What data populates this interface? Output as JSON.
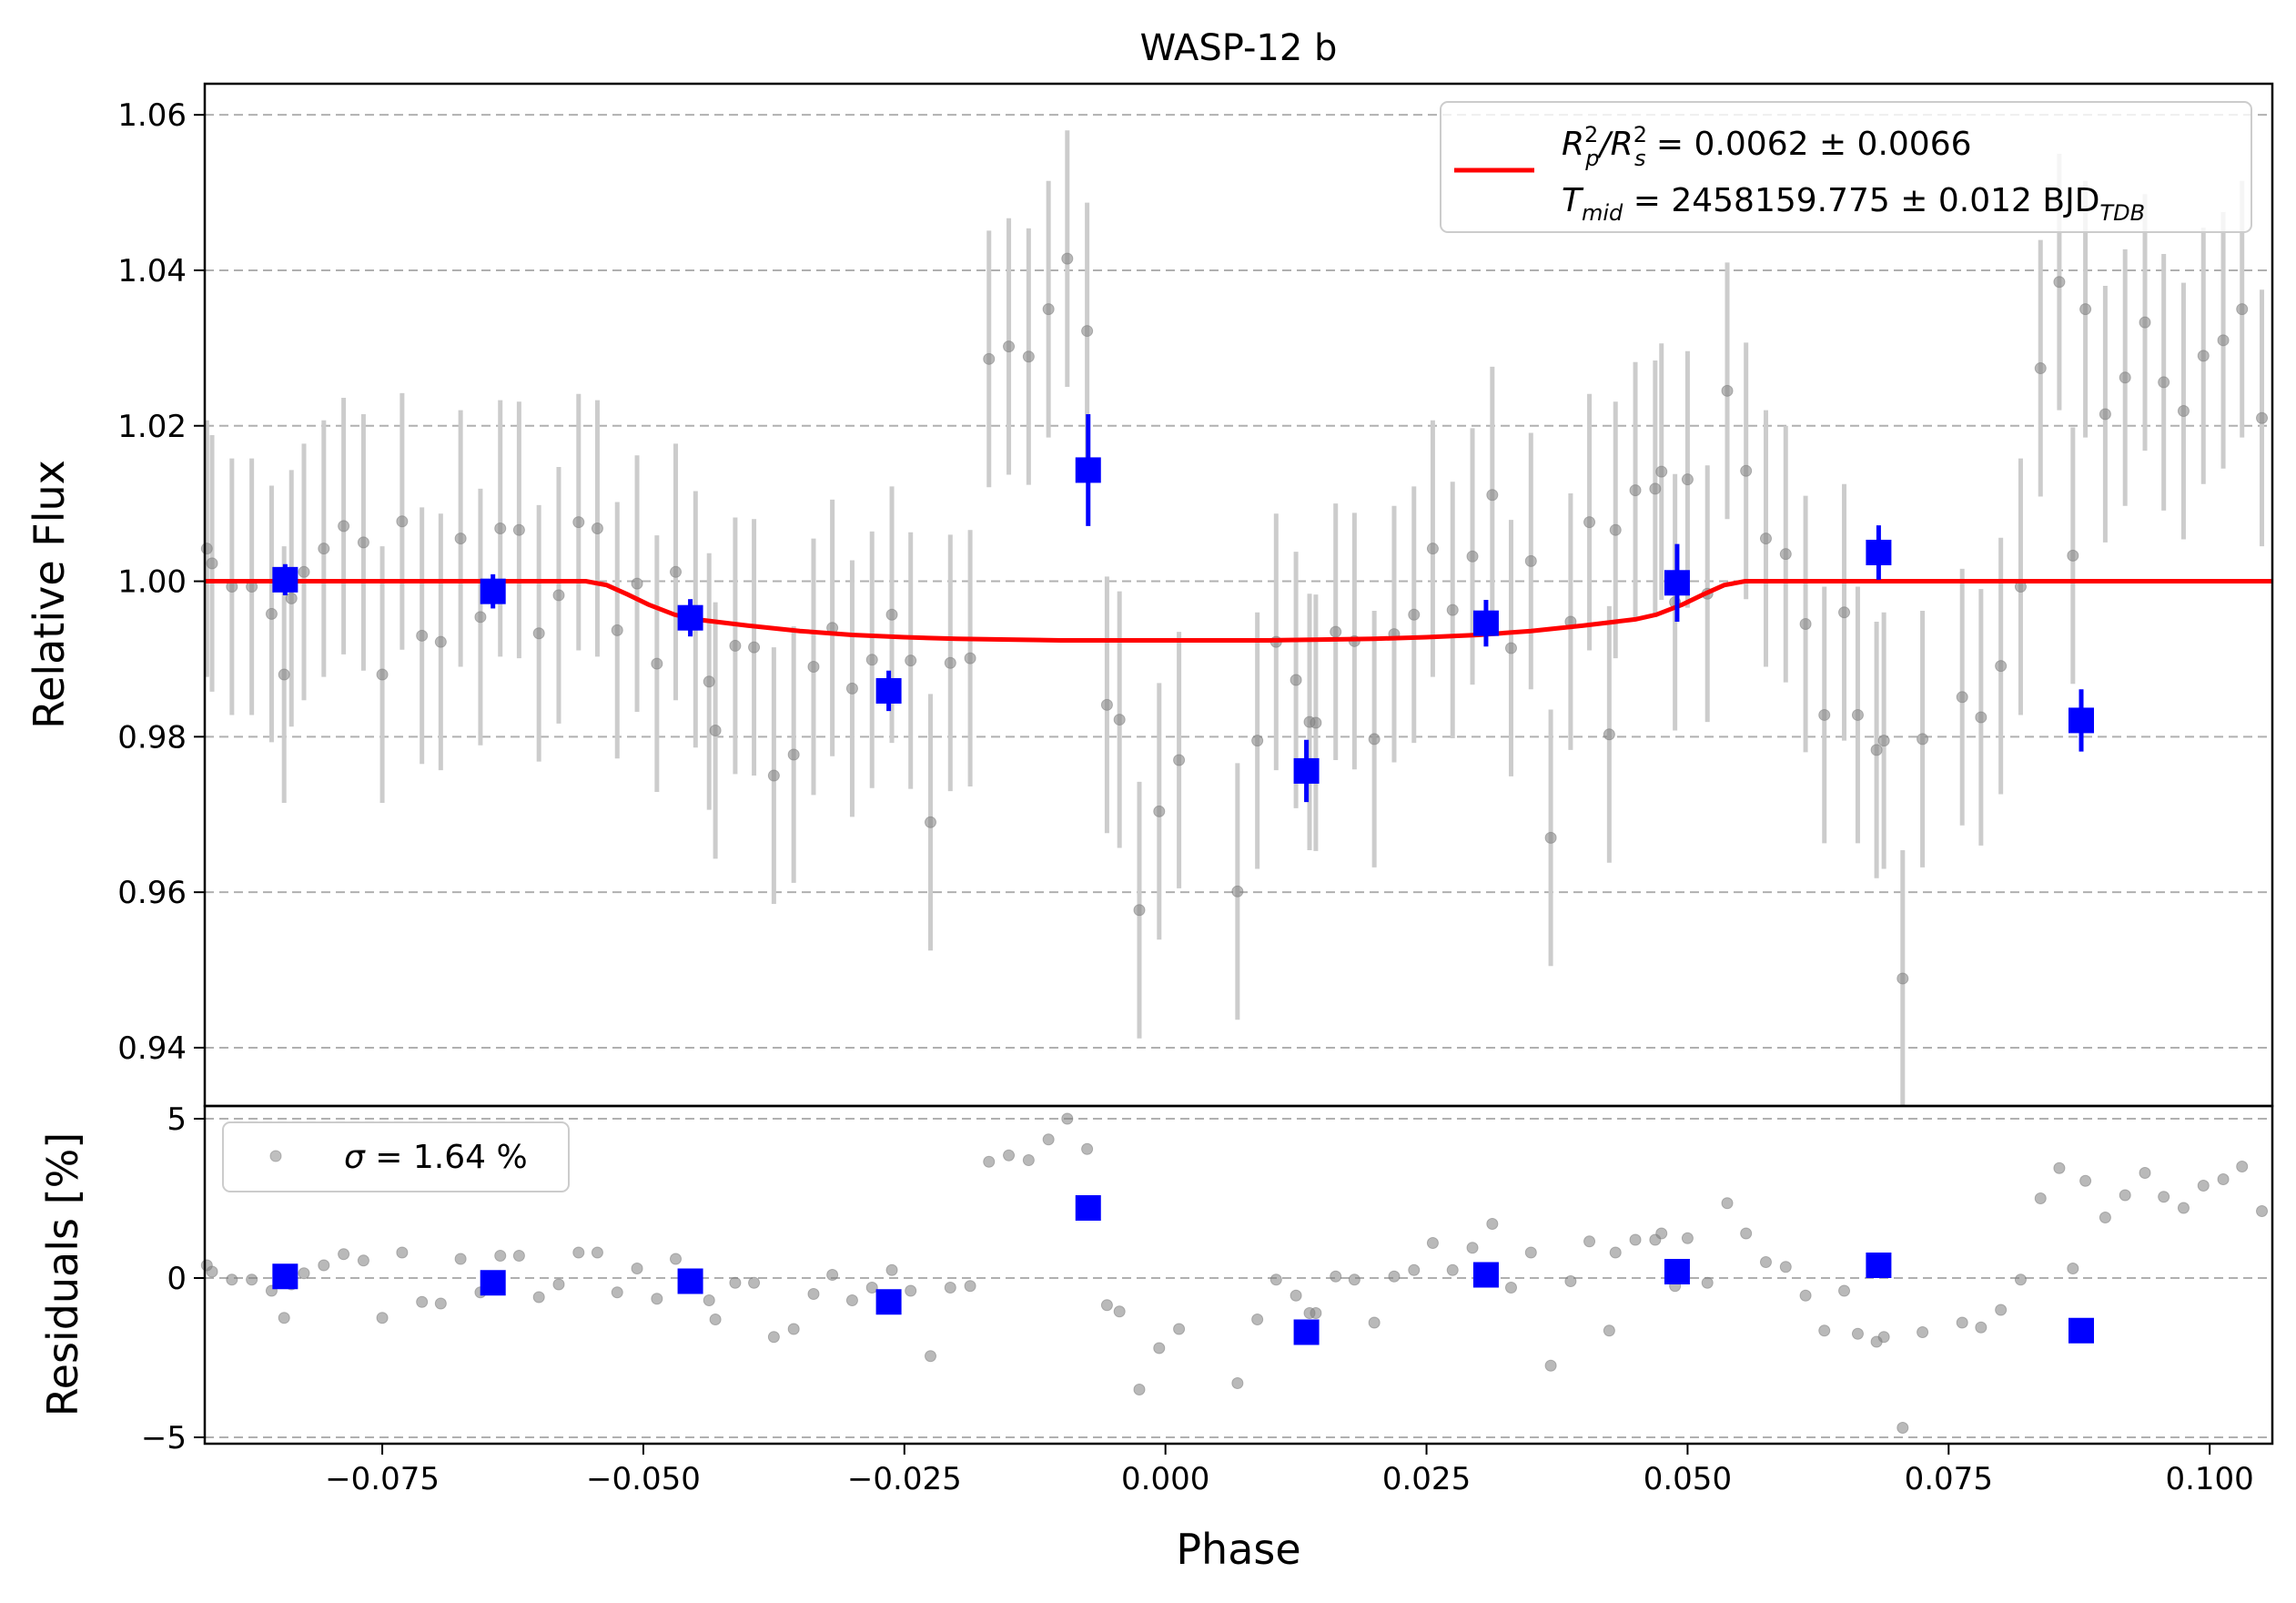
{
  "chart_data": [
    {
      "type": "scatter",
      "title": "WASP-12 b",
      "xlabel": "",
      "ylabel": "Relative Flux",
      "xlim": [
        -0.092,
        0.106
      ],
      "ylim": [
        0.9325,
        1.064
      ],
      "yticks": [
        0.94,
        0.96,
        0.98,
        1.0,
        1.02,
        1.04,
        1.06
      ],
      "ytick_labels": [
        "0.94",
        "0.96",
        "0.98",
        "1.00",
        "1.02",
        "1.04",
        "1.06"
      ],
      "grid": "horizontal dashed",
      "legend_position": "top-right",
      "legend": [
        {
          "label_main": "R",
          "label_sub1": "p",
          "label_mid": "/R",
          "label_sub2": "s",
          "label_rest": " = 0.0062 ± 0.0066",
          "color": "#ff0000"
        },
        {
          "label_main": "T",
          "label_sub1": "mid",
          "label_rest": " = 2458159.775 ± 0.012 BJD",
          "label_sub2": "TDB"
        }
      ],
      "series": [
        {
          "name": "raw",
          "color": "#808080",
          "errcolor": "#cccccc",
          "x": [
            -0.0918,
            -0.0913,
            -0.0894,
            -0.0875,
            -0.0856,
            -0.0844,
            -0.0837,
            -0.0825,
            -0.0806,
            -0.0787,
            -0.0768,
            -0.075,
            -0.0731,
            -0.0712,
            -0.0694,
            -0.0675,
            -0.0656,
            -0.0637,
            -0.0619,
            -0.06,
            -0.0581,
            -0.0562,
            -0.0544,
            -0.0525,
            -0.0506,
            -0.0487,
            -0.0469,
            -0.045,
            -0.0437,
            -0.0431,
            -0.0412,
            -0.0394,
            -0.0375,
            -0.0356,
            -0.0337,
            -0.0319,
            -0.03,
            -0.0281,
            -0.0262,
            -0.0244,
            -0.0225,
            -0.0206,
            -0.0187,
            -0.0169,
            -0.015,
            -0.0131,
            -0.0112,
            -0.0094,
            -0.0075,
            -0.0056,
            -0.0044,
            -0.0025,
            -0.0006,
            0.0013,
            0.0069,
            0.0088,
            0.0106,
            0.0125,
            0.0138,
            0.0144,
            0.0163,
            0.0181,
            0.02,
            0.0219,
            0.0238,
            0.0256,
            0.0275,
            0.0294,
            0.0313,
            0.0331,
            0.035,
            0.0369,
            0.0388,
            0.0406,
            0.0425,
            0.0431,
            0.045,
            0.0469,
            0.0475,
            0.0488,
            0.05,
            0.0519,
            0.0538,
            0.0556,
            0.0575,
            0.0594,
            0.0613,
            0.0631,
            0.065,
            0.0663,
            0.0681,
            0.0688,
            0.0706,
            0.0725,
            0.0763,
            0.0781,
            0.08,
            0.0819,
            0.0838,
            0.0856,
            0.0869,
            0.0881,
            0.09,
            0.0919,
            0.0938,
            0.0956,
            0.0975,
            0.0994,
            0.1013,
            0.1031,
            0.105
          ],
          "y": [
            1.0042,
            1.0023,
            0.9993,
            0.9993,
            0.9958,
            0.988,
            0.9978,
            1.0012,
            1.0042,
            1.0071,
            1.005,
            0.988,
            1.0077,
            0.993,
            0.9922,
            1.0055,
            0.9954,
            1.0068,
            1.0066,
            0.9933,
            0.9982,
            1.0076,
            1.0068,
            0.9937,
            0.9997,
            0.9894,
            1.0012,
            0.9951,
            0.9871,
            0.9808,
            0.9917,
            0.9915,
            0.975,
            0.9777,
            0.989,
            0.994,
            0.9862,
            0.9899,
            0.9957,
            0.9898,
            0.969,
            0.9895,
            0.9901,
            1.0286,
            1.0302,
            1.0289,
            1.035,
            1.0415,
            1.0322,
            0.9841,
            0.9822,
            0.9577,
            0.9704,
            0.977,
            0.9601,
            0.9795,
            0.9922,
            0.9873,
            0.9819,
            0.9818,
            0.9935,
            0.9923,
            0.9797,
            0.9932,
            0.9957,
            1.0042,
            0.9963,
            1.0032,
            1.0111,
            0.9914,
            1.0026,
            0.967,
            0.9948,
            1.0076,
            0.9803,
            1.0066,
            1.0117,
            1.0119,
            1.0141,
            0.9973,
            1.0131,
            0.9984,
            1.0245,
            1.0142,
            1.0055,
            1.0035,
            0.9945,
            0.9828,
            0.996,
            0.9828,
            0.9783,
            0.9795,
            0.9489,
            0.9797,
            0.9851,
            0.9825,
            0.9891,
            0.9993,
            1.0274,
            1.0385,
            1.0033,
            1.035,
            1.0215,
            1.0262,
            1.0333,
            1.0256,
            1.0219,
            1.029,
            1.031,
            1.035,
            1.021
          ],
          "yerr": [
            0.0165,
            0.0165,
            0.0165,
            0.0165,
            0.0165,
            0.0165,
            0.0165,
            0.0165,
            0.0165,
            0.0165,
            0.0165,
            0.0165,
            0.0165,
            0.0165,
            0.0165,
            0.0165,
            0.0165,
            0.0165,
            0.0165,
            0.0165,
            0.0165,
            0.0165,
            0.0165,
            0.0165,
            0.0165,
            0.0165,
            0.0165,
            0.0165,
            0.0165,
            0.0165,
            0.0165,
            0.0165,
            0.0165,
            0.0165,
            0.0165,
            0.0165,
            0.0165,
            0.0165,
            0.0165,
            0.0165,
            0.0165,
            0.0165,
            0.0165,
            0.0165,
            0.0165,
            0.0165,
            0.0165,
            0.0165,
            0.0165,
            0.0165,
            0.0165,
            0.0165,
            0.0165,
            0.0165,
            0.0165,
            0.0165,
            0.0165,
            0.0165,
            0.0165,
            0.0165,
            0.0165,
            0.0165,
            0.0165,
            0.0165,
            0.0165,
            0.0165,
            0.0165,
            0.0165,
            0.0165,
            0.0165,
            0.0165,
            0.0165,
            0.0165,
            0.0165,
            0.0165,
            0.0165,
            0.0165,
            0.0165,
            0.0165,
            0.0165,
            0.0165,
            0.0165,
            0.0165,
            0.0165,
            0.0165,
            0.0165,
            0.0165,
            0.0165,
            0.0165,
            0.0165,
            0.0165,
            0.0165,
            0.0165,
            0.0165,
            0.0165,
            0.0165,
            0.0165,
            0.0165,
            0.0165,
            0.0165,
            0.0165,
            0.0165,
            0.0165,
            0.0165,
            0.0165,
            0.0165,
            0.0165,
            0.0165,
            0.0165,
            0.0165,
            0.0165
          ]
        },
        {
          "name": "binned",
          "color": "#0000ff",
          "x": [
            -0.0843,
            -0.0644,
            -0.0455,
            -0.0265,
            -0.0074,
            0.0135,
            0.0307,
            0.049,
            0.0683,
            0.0877
          ],
          "y": [
            1.0002,
            0.9987,
            0.9953,
            0.9859,
            1.0143,
            0.9756,
            0.9946,
            0.9998,
            1.0037,
            0.9821
          ],
          "yerr": [
            0.002,
            0.0022,
            0.0024,
            0.0026,
            0.0072,
            0.004,
            0.003,
            0.005,
            0.0035,
            0.004
          ]
        },
        {
          "name": "model",
          "color": "#ff0000",
          "x": [
            -0.092,
            -0.0555,
            -0.0535,
            -0.0515,
            -0.0495,
            -0.047,
            -0.045,
            -0.04,
            -0.035,
            -0.03,
            -0.025,
            -0.02,
            -0.015,
            -0.01,
            -0.005,
            0.0,
            0.005,
            0.01,
            0.015,
            0.02,
            0.025,
            0.03,
            0.035,
            0.04,
            0.045,
            0.047,
            0.0495,
            0.0515,
            0.0535,
            0.0555,
            0.106
          ],
          "y": [
            1.0,
            1.0,
            0.9995,
            0.9983,
            0.997,
            0.9957,
            0.9951,
            0.9943,
            0.9936,
            0.9931,
            0.9928,
            0.9926,
            0.9925,
            0.9924,
            0.9924,
            0.9924,
            0.9924,
            0.9924,
            0.9925,
            0.9926,
            0.9928,
            0.9931,
            0.9936,
            0.9943,
            0.9951,
            0.9957,
            0.997,
            0.9983,
            0.9995,
            1.0,
            1.0
          ]
        }
      ]
    },
    {
      "type": "scatter",
      "title": "",
      "xlabel": "Phase",
      "ylabel": "Residuals [%]",
      "xlim": [
        -0.092,
        0.106
      ],
      "ylim": [
        -5.2,
        5.4
      ],
      "yticks": [
        -5,
        0,
        5
      ],
      "ytick_labels": [
        "−5",
        "0",
        "5"
      ],
      "xticks": [
        -0.075,
        -0.05,
        -0.025,
        0.0,
        0.025,
        0.05,
        0.075,
        0.1
      ],
      "xtick_labels": [
        "−0.075",
        "−0.050",
        "−0.025",
        "0.000",
        "0.025",
        "0.050",
        "0.075",
        "0.100"
      ],
      "grid": "horizontal dashed",
      "legend_position": "top-left",
      "legend": [
        {
          "label_main": "σ",
          "label_rest": " = 1.64 %",
          "color": "#808080"
        }
      ],
      "series": [
        {
          "name": "raw",
          "color": "#808080",
          "x": [
            -0.0918,
            -0.0913,
            -0.0894,
            -0.0875,
            -0.0856,
            -0.0844,
            -0.0837,
            -0.0825,
            -0.0806,
            -0.0787,
            -0.0768,
            -0.075,
            -0.0731,
            -0.0712,
            -0.0694,
            -0.0675,
            -0.0656,
            -0.0637,
            -0.0619,
            -0.06,
            -0.0581,
            -0.0562,
            -0.0544,
            -0.0525,
            -0.0506,
            -0.0487,
            -0.0469,
            -0.045,
            -0.0437,
            -0.0431,
            -0.0412,
            -0.0394,
            -0.0375,
            -0.0356,
            -0.0337,
            -0.0319,
            -0.03,
            -0.0281,
            -0.0262,
            -0.0244,
            -0.0225,
            -0.0206,
            -0.0187,
            -0.0169,
            -0.015,
            -0.0131,
            -0.0112,
            -0.0094,
            -0.0075,
            -0.0056,
            -0.0044,
            -0.0025,
            -0.0006,
            0.0013,
            0.0069,
            0.0088,
            0.0106,
            0.0125,
            0.0138,
            0.0144,
            0.0163,
            0.0181,
            0.02,
            0.0219,
            0.0238,
            0.0256,
            0.0275,
            0.0294,
            0.0313,
            0.0331,
            0.035,
            0.0369,
            0.0388,
            0.0406,
            0.0425,
            0.0431,
            0.045,
            0.0469,
            0.0475,
            0.0488,
            0.05,
            0.0519,
            0.0538,
            0.0556,
            0.0575,
            0.0594,
            0.0613,
            0.0631,
            0.065,
            0.0663,
            0.0681,
            0.0688,
            0.0706,
            0.0725,
            0.0763,
            0.0781,
            0.08,
            0.0819,
            0.0838,
            0.0856,
            0.0869,
            0.0881,
            0.09,
            0.0919,
            0.0938,
            0.0956,
            0.0975,
            0.0994,
            0.1013,
            0.1031,
            0.105
          ],
          "y": [
            0.4,
            0.2,
            -0.05,
            -0.05,
            -0.4,
            -1.25,
            -0.2,
            0.15,
            0.4,
            0.75,
            0.55,
            -1.25,
            0.8,
            -0.75,
            -0.8,
            0.6,
            -0.45,
            0.7,
            0.7,
            -0.6,
            -0.2,
            0.8,
            0.8,
            -0.45,
            0.3,
            -0.65,
            0.6,
            0.0,
            -0.7,
            -1.3,
            -0.15,
            -0.15,
            -1.85,
            -1.6,
            -0.5,
            0.1,
            -0.7,
            -0.3,
            0.25,
            -0.4,
            -2.45,
            -0.3,
            -0.25,
            3.65,
            3.85,
            3.7,
            4.35,
            5.0,
            4.05,
            -0.85,
            -1.05,
            -3.5,
            -2.2,
            -1.6,
            -3.3,
            -1.3,
            -0.05,
            -0.55,
            -1.1,
            -1.1,
            0.05,
            -0.05,
            -1.4,
            0.05,
            0.25,
            1.1,
            0.25,
            0.95,
            1.7,
            -0.3,
            0.8,
            -2.75,
            -0.1,
            1.15,
            -1.65,
            0.8,
            1.2,
            1.2,
            1.4,
            -0.25,
            1.25,
            -0.15,
            2.35,
            1.4,
            0.5,
            0.35,
            -0.55,
            -1.65,
            -0.4,
            -1.75,
            -2.0,
            -1.85,
            -4.7,
            -1.7,
            -1.4,
            -1.55,
            -1.0,
            -0.05,
            2.5,
            3.45,
            0.3,
            3.05,
            1.9,
            2.6,
            3.3,
            2.55,
            2.2,
            2.9,
            3.1,
            3.5,
            2.1
          ]
        },
        {
          "name": "binned",
          "color": "#0000ff",
          "x": [
            -0.0843,
            -0.0644,
            -0.0455,
            -0.0265,
            -0.0074,
            0.0135,
            0.0307,
            0.049,
            0.0683,
            0.0877
          ],
          "y": [
            0.05,
            -0.15,
            -0.1,
            -0.75,
            2.2,
            -1.7,
            0.1,
            0.2,
            0.4,
            -1.65
          ]
        }
      ]
    }
  ]
}
